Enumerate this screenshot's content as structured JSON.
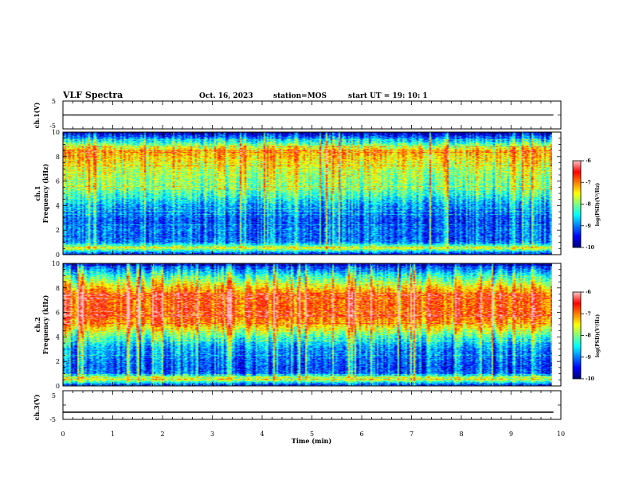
{
  "header": {
    "title": "VLF Spectra",
    "date": "Oct. 16, 2023",
    "station": "station=MOS",
    "start": "start UT =  19: 10: 1"
  },
  "colors": {
    "scale": [
      "#000080",
      "#0000ff",
      "#0080ff",
      "#00ffff",
      "#80ff80",
      "#ffff00",
      "#ff8000",
      "#ff0000",
      "#ffc0c0"
    ]
  },
  "chart_data": [
    {
      "type": "line",
      "name": "ch1-voltage",
      "ylabel": "ch.1(V)",
      "ylim": [
        -5,
        5
      ],
      "yticks": [
        "5",
        "-5"
      ],
      "x": [
        0,
        9.85
      ],
      "values": [
        0,
        0
      ],
      "xlim": [
        0,
        10
      ]
    },
    {
      "type": "heatmap",
      "name": "ch1-spectrogram",
      "ylabel": "ch.1\nFrequency (kHz)",
      "ylim": [
        0,
        10
      ],
      "yticks": [
        "0",
        "2",
        "4",
        "6",
        "8",
        "10"
      ],
      "xlim": [
        0,
        10
      ],
      "data_extent_min": 9.85,
      "colorbar": {
        "label": "log(PSD)(V²/Hz)",
        "ticks": [
          "-6",
          "-7",
          "-8",
          "-9",
          "-10"
        ],
        "range": [
          -10,
          -6
        ]
      },
      "profile_khz": [
        0,
        0.5,
        1,
        1.5,
        2,
        2.5,
        3,
        3.5,
        4,
        4.5,
        5,
        5.5,
        6,
        6.5,
        7,
        7.5,
        8,
        8.5,
        9,
        9.5,
        10
      ],
      "profile_log_psd": [
        -9.5,
        -7.6,
        -9.0,
        -9.1,
        -9.0,
        -9.2,
        -9.1,
        -9.0,
        -8.8,
        -8.5,
        -8.2,
        -8.0,
        -7.9,
        -7.8,
        -7.7,
        -7.5,
        -7.3,
        -7.2,
        -8.0,
        -8.9,
        -9.8
      ]
    },
    {
      "type": "heatmap",
      "name": "ch2-spectrogram",
      "ylabel": "ch.2\nFrequency (kHz)",
      "ylim": [
        0,
        10
      ],
      "yticks": [
        "0",
        "2",
        "4",
        "6",
        "8",
        "10"
      ],
      "xlim": [
        0,
        10
      ],
      "data_extent_min": 9.85,
      "colorbar": {
        "label": "log(PSD)(V²/Hz)",
        "ticks": [
          "-6",
          "-7",
          "-8",
          "-9",
          "-10"
        ],
        "range": [
          -10,
          -6
        ]
      },
      "profile_khz": [
        0,
        0.5,
        1,
        1.5,
        2,
        2.5,
        3,
        3.5,
        4,
        4.5,
        5,
        5.5,
        6,
        6.5,
        7,
        7.5,
        8,
        8.5,
        9,
        9.5,
        10
      ],
      "profile_log_psd": [
        -9.5,
        -7.6,
        -9.1,
        -9.2,
        -9.1,
        -9.0,
        -8.9,
        -8.6,
        -8.2,
        -7.7,
        -7.2,
        -6.9,
        -6.8,
        -6.8,
        -6.8,
        -6.9,
        -7.3,
        -7.8,
        -8.3,
        -8.9,
        -9.8
      ]
    },
    {
      "type": "line",
      "name": "ch3-voltage",
      "ylabel": "ch.3(V)",
      "ylim": [
        -5,
        5
      ],
      "yticks": [
        "5",
        "-5"
      ],
      "x": [
        0,
        9.85
      ],
      "values": [
        -2.5,
        -2.5
      ],
      "xlim": [
        0,
        10
      ]
    }
  ],
  "xaxis": {
    "label": "Time (min)",
    "ticks": [
      "0",
      "1",
      "2",
      "3",
      "4",
      "5",
      "6",
      "7",
      "8",
      "9",
      "10"
    ]
  }
}
